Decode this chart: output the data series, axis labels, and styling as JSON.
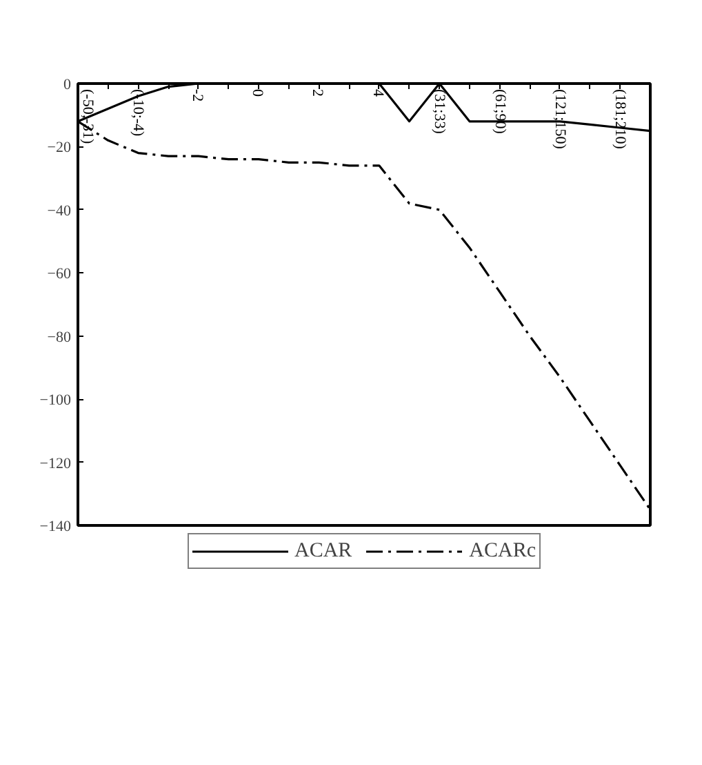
{
  "chart_data": {
    "type": "line",
    "categories": [
      "(-50;-31)",
      null,
      "(-10;-4)",
      null,
      "-2",
      null,
      "0",
      null,
      "2",
      null,
      "4",
      null,
      "(31;33)",
      null,
      "(61;90)",
      null,
      "(121;150)",
      null,
      "(181;210)",
      null
    ],
    "series": [
      {
        "name": "ACAR",
        "color": "#000000",
        "line_style": "solid",
        "values": [
          -12,
          -8,
          -4,
          -1,
          0,
          0,
          0,
          0,
          0,
          0,
          0,
          -12,
          0,
          -12,
          -12,
          -12,
          -12,
          -13,
          -14,
          -15
        ]
      },
      {
        "name": "ACARc",
        "color": "#000000",
        "line_style": "dashdot",
        "values": [
          -12,
          -18,
          -22,
          -23,
          -23,
          -24,
          -24,
          -25,
          -25,
          -26,
          -26,
          -38,
          -40,
          -52,
          -66,
          -80,
          -93,
          -107,
          -121,
          -135
        ]
      }
    ],
    "ylim": [
      -140,
      0
    ],
    "yticks": [
      0,
      -20,
      -40,
      -60,
      -80,
      -100,
      -120,
      -140
    ],
    "grid": false,
    "legend": "bottom",
    "marker": "none"
  }
}
